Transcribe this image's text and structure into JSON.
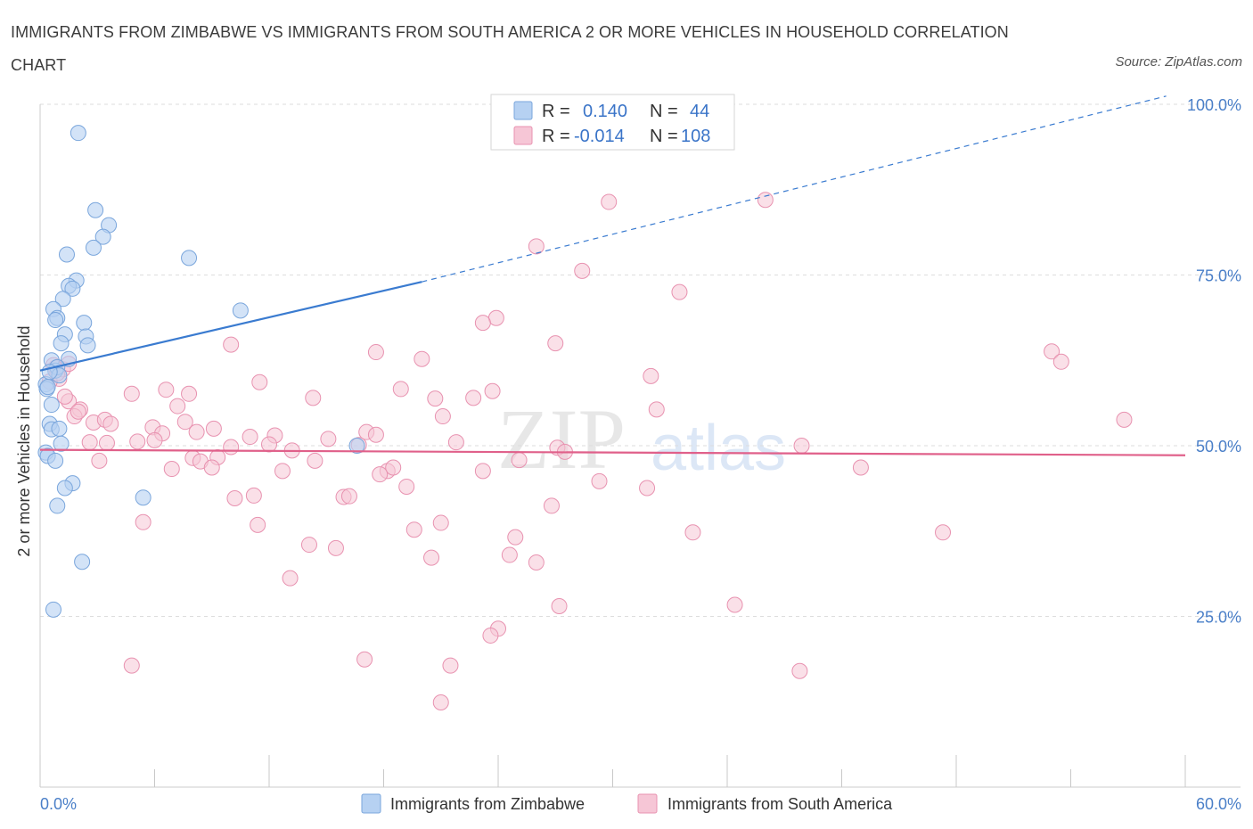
{
  "title": "IMMIGRANTS FROM ZIMBABWE VS IMMIGRANTS FROM SOUTH AMERICA 2 OR MORE VEHICLES IN HOUSEHOLD CORRELATION CHART",
  "source": "Source: ZipAtlas.com",
  "watermark": {
    "zip": "ZIP",
    "atlas": "atlas"
  },
  "stats": {
    "r_label": "R =",
    "n_label": "N =",
    "series1": {
      "r": "0.140",
      "n": "44"
    },
    "series2": {
      "r": "-0.014",
      "n": "108"
    }
  },
  "colors": {
    "blue_fill": "#b6d1f2",
    "blue_stroke": "#7aa6dc",
    "blue_line": "#3a7bd0",
    "pink_fill": "#f6c6d6",
    "pink_stroke": "#e892b0",
    "pink_line": "#e0608a",
    "grid": "#dddddd",
    "tick_text": "#4a7fc8"
  },
  "chart_data": {
    "type": "scatter",
    "title": "IMMIGRANTS FROM ZIMBABWE VS IMMIGRANTS FROM SOUTH AMERICA 2 OR MORE VEHICLES IN HOUSEHOLD CORRELATION CHART",
    "xlabel": "",
    "ylabel": "2 or more Vehicles in Household",
    "xlim": [
      0,
      60
    ],
    "ylim": [
      0,
      100
    ],
    "x_tick_labels": [
      "0.0%",
      "60.0%"
    ],
    "y_ticks": [
      25,
      50,
      75,
      100
    ],
    "y_tick_labels": [
      "25.0%",
      "50.0%",
      "75.0%",
      "100.0%"
    ],
    "grid": true,
    "legend": [
      "Immigrants from Zimbabwe",
      "Immigrants from South America"
    ],
    "series": [
      {
        "name": "Immigrants from Zimbabwe",
        "trend": {
          "x0": 0,
          "y0": 61.0,
          "x1": 20,
          "y1": 74.0,
          "dashed_to_x": 59,
          "dashed_to_y": 101.2
        },
        "points": [
          [
            2.0,
            95.8
          ],
          [
            2.9,
            84.5
          ],
          [
            3.6,
            82.3
          ],
          [
            3.3,
            80.6
          ],
          [
            2.8,
            79.0
          ],
          [
            7.8,
            77.5
          ],
          [
            1.4,
            78.0
          ],
          [
            1.9,
            74.2
          ],
          [
            1.5,
            73.4
          ],
          [
            1.7,
            73.0
          ],
          [
            1.2,
            71.5
          ],
          [
            10.5,
            69.8
          ],
          [
            0.7,
            70.0
          ],
          [
            0.9,
            68.7
          ],
          [
            0.8,
            68.4
          ],
          [
            2.3,
            68.0
          ],
          [
            1.3,
            66.3
          ],
          [
            2.4,
            66.0
          ],
          [
            1.1,
            65.0
          ],
          [
            2.5,
            64.7
          ],
          [
            1.5,
            62.7
          ],
          [
            0.6,
            62.5
          ],
          [
            0.8,
            61.0
          ],
          [
            0.9,
            61.5
          ],
          [
            1.0,
            60.3
          ],
          [
            0.3,
            59.0
          ],
          [
            0.35,
            58.3
          ],
          [
            0.4,
            58.6
          ],
          [
            0.6,
            56.0
          ],
          [
            0.5,
            53.2
          ],
          [
            0.6,
            52.4
          ],
          [
            1.0,
            52.5
          ],
          [
            1.1,
            50.3
          ],
          [
            16.6,
            50.0
          ],
          [
            0.3,
            49.0
          ],
          [
            0.4,
            48.5
          ],
          [
            0.8,
            47.8
          ],
          [
            1.7,
            44.5
          ],
          [
            1.3,
            43.8
          ],
          [
            5.4,
            42.4
          ],
          [
            0.9,
            41.2
          ],
          [
            2.2,
            33.0
          ],
          [
            0.7,
            26.0
          ],
          [
            0.5,
            60.8
          ]
        ]
      },
      {
        "name": "Immigrants from South America",
        "trend": {
          "x0": 0,
          "y0": 49.4,
          "x1": 60,
          "y1": 48.6
        },
        "points": [
          [
            29.8,
            85.7
          ],
          [
            38.0,
            86.0
          ],
          [
            26.0,
            79.2
          ],
          [
            28.4,
            75.6
          ],
          [
            33.5,
            72.5
          ],
          [
            23.9,
            68.7
          ],
          [
            23.2,
            68.0
          ],
          [
            27.0,
            65.0
          ],
          [
            10.0,
            64.8
          ],
          [
            17.6,
            63.7
          ],
          [
            20.0,
            62.7
          ],
          [
            53.0,
            63.8
          ],
          [
            53.5,
            62.3
          ],
          [
            32.0,
            60.2
          ],
          [
            11.5,
            59.3
          ],
          [
            18.9,
            58.3
          ],
          [
            6.6,
            58.2
          ],
          [
            4.8,
            57.6
          ],
          [
            7.8,
            57.6
          ],
          [
            14.3,
            57.0
          ],
          [
            20.7,
            56.9
          ],
          [
            22.7,
            57.0
          ],
          [
            23.7,
            58.0
          ],
          [
            7.2,
            55.8
          ],
          [
            32.3,
            55.3
          ],
          [
            2.1,
            55.3
          ],
          [
            1.5,
            56.5
          ],
          [
            1.8,
            54.3
          ],
          [
            2.8,
            53.4
          ],
          [
            3.4,
            53.8
          ],
          [
            3.7,
            53.2
          ],
          [
            7.6,
            53.5
          ],
          [
            21.1,
            54.3
          ],
          [
            5.9,
            52.7
          ],
          [
            6.4,
            51.8
          ],
          [
            9.1,
            52.5
          ],
          [
            8.2,
            52.0
          ],
          [
            11.0,
            51.3
          ],
          [
            12.3,
            51.5
          ],
          [
            17.1,
            52.0
          ],
          [
            17.6,
            51.6
          ],
          [
            10.0,
            49.8
          ],
          [
            2.6,
            50.5
          ],
          [
            3.5,
            50.4
          ],
          [
            5.1,
            50.6
          ],
          [
            6.0,
            50.8
          ],
          [
            12.0,
            50.2
          ],
          [
            13.2,
            49.3
          ],
          [
            15.1,
            51.0
          ],
          [
            16.7,
            50.1
          ],
          [
            21.8,
            50.5
          ],
          [
            27.1,
            49.7
          ],
          [
            27.5,
            49.1
          ],
          [
            39.9,
            50.0
          ],
          [
            56.8,
            53.8
          ],
          [
            3.1,
            47.8
          ],
          [
            6.9,
            46.6
          ],
          [
            8.0,
            48.2
          ],
          [
            8.4,
            47.7
          ],
          [
            9.3,
            48.3
          ],
          [
            9.0,
            46.8
          ],
          [
            12.7,
            46.3
          ],
          [
            14.4,
            47.8
          ],
          [
            18.2,
            46.3
          ],
          [
            18.5,
            46.8
          ],
          [
            17.8,
            45.8
          ],
          [
            23.2,
            46.3
          ],
          [
            25.1,
            47.9
          ],
          [
            29.3,
            44.8
          ],
          [
            19.2,
            44.0
          ],
          [
            31.8,
            43.8
          ],
          [
            43.0,
            46.8
          ],
          [
            10.2,
            42.3
          ],
          [
            11.2,
            42.7
          ],
          [
            15.9,
            42.5
          ],
          [
            16.2,
            42.6
          ],
          [
            26.8,
            41.2
          ],
          [
            5.4,
            38.8
          ],
          [
            11.4,
            38.4
          ],
          [
            19.6,
            37.7
          ],
          [
            21.0,
            38.7
          ],
          [
            24.9,
            36.6
          ],
          [
            34.2,
            37.3
          ],
          [
            47.3,
            37.3
          ],
          [
            14.1,
            35.5
          ],
          [
            15.5,
            35.0
          ],
          [
            20.5,
            33.6
          ],
          [
            24.6,
            34.0
          ],
          [
            26.0,
            32.9
          ],
          [
            13.1,
            30.6
          ],
          [
            27.2,
            26.5
          ],
          [
            36.4,
            26.7
          ],
          [
            24.0,
            23.2
          ],
          [
            23.6,
            22.2
          ],
          [
            4.8,
            17.8
          ],
          [
            17.0,
            18.7
          ],
          [
            21.5,
            17.8
          ],
          [
            39.8,
            17.0
          ],
          [
            21.0,
            12.4
          ],
          [
            1.0,
            59.8
          ],
          [
            0.8,
            61.4
          ],
          [
            1.2,
            61.2
          ],
          [
            1.5,
            62.0
          ],
          [
            0.5,
            59.4
          ],
          [
            0.9,
            60.6
          ],
          [
            0.7,
            61.8
          ],
          [
            1.3,
            57.2
          ],
          [
            2.0,
            55.0
          ]
        ]
      }
    ]
  }
}
